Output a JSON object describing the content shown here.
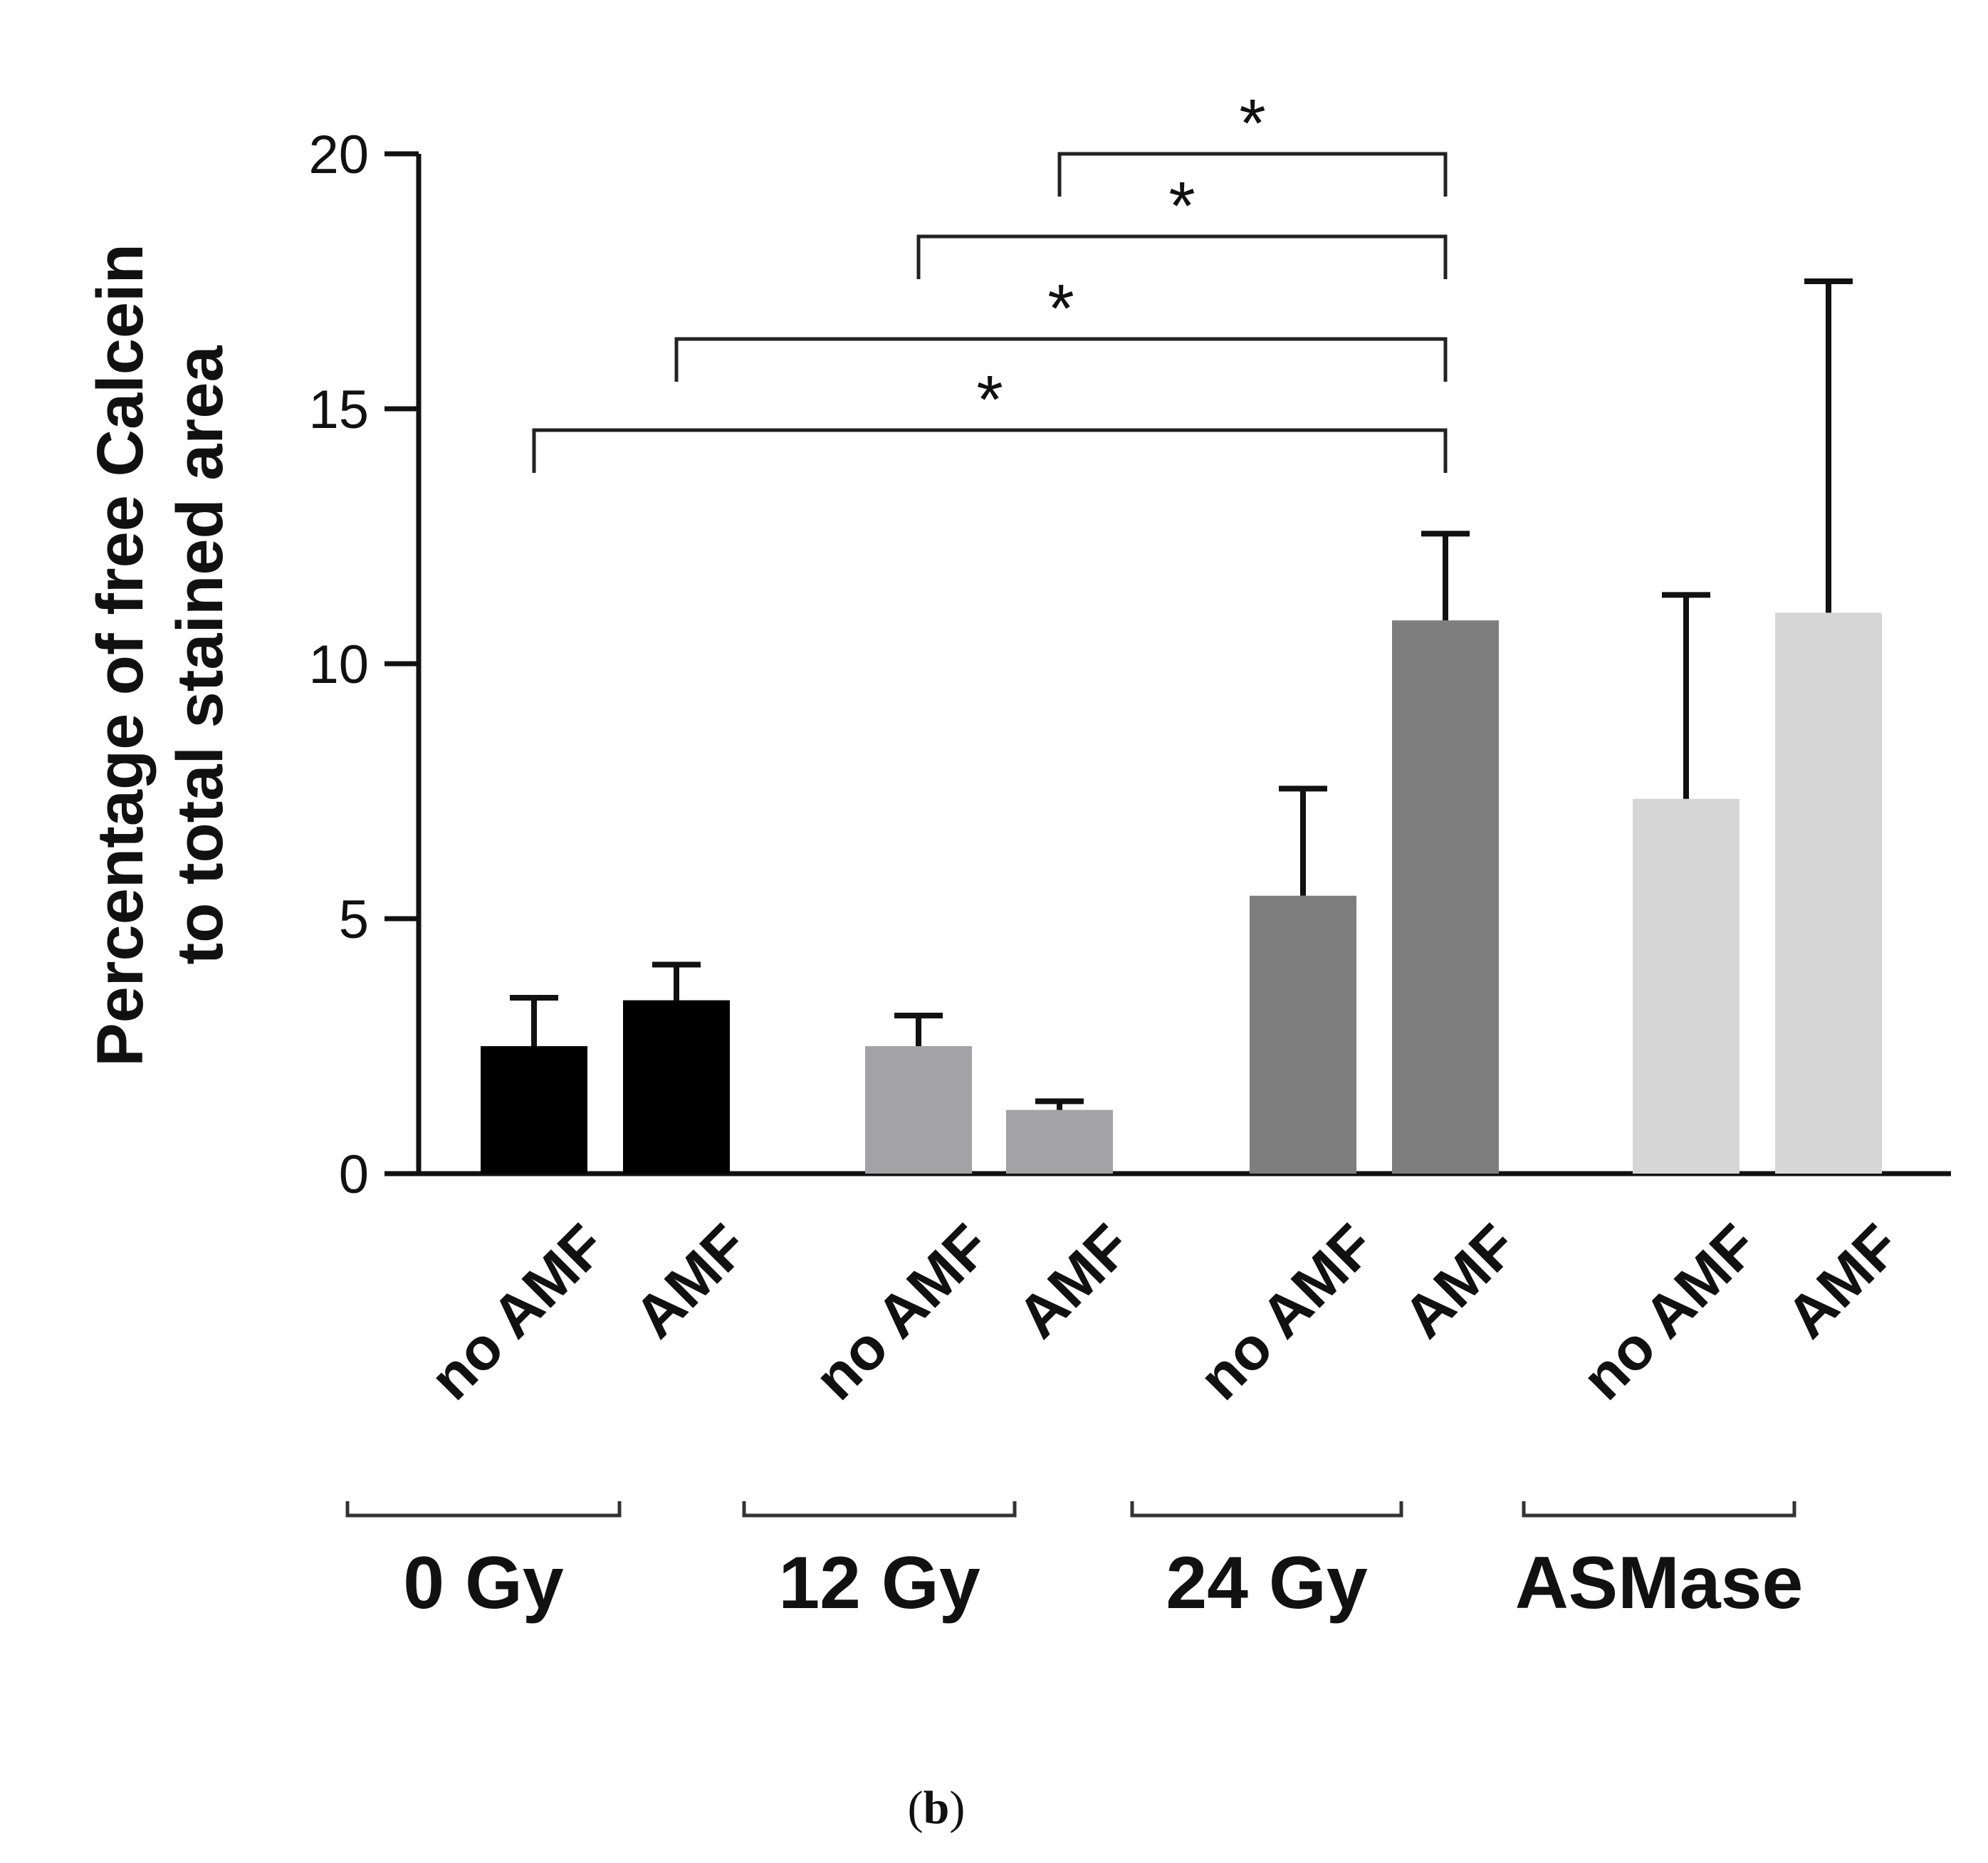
{
  "chart_data": {
    "type": "bar",
    "ylabel": [
      "Percentage of free Calcein",
      "to total stained area"
    ],
    "ylim": [
      0,
      20
    ],
    "yticks": [
      0,
      5,
      10,
      15,
      20
    ],
    "categories": [
      "no AMF",
      "AMF",
      "no AMF",
      "AMF",
      "no AMF",
      "AMF",
      "no AMF",
      "AMF"
    ],
    "groups": [
      {
        "label": "0 Gy",
        "color": "#000000"
      },
      {
        "label": "12 Gy",
        "color": "#a3a3a6"
      },
      {
        "label": "24 Gy",
        "color": "#7e7e7e"
      },
      {
        "label": "ASMase",
        "color": "#d6d6d6"
      }
    ],
    "values": [
      2.5,
      3.4,
      2.5,
      1.25,
      5.45,
      10.85,
      7.35,
      11.0
    ],
    "errors": [
      0.95,
      0.7,
      0.6,
      0.17,
      2.1,
      1.7,
      4.0,
      6.5
    ],
    "significance": [
      {
        "from": 0,
        "to": 5,
        "label": "*"
      },
      {
        "from": 1,
        "to": 5,
        "label": "*"
      },
      {
        "from": 2,
        "to": 5,
        "label": "*"
      },
      {
        "from": 3,
        "to": 5,
        "label": "*"
      }
    ]
  },
  "caption": {
    "open": "(",
    "letter": "b",
    "close": ")"
  }
}
